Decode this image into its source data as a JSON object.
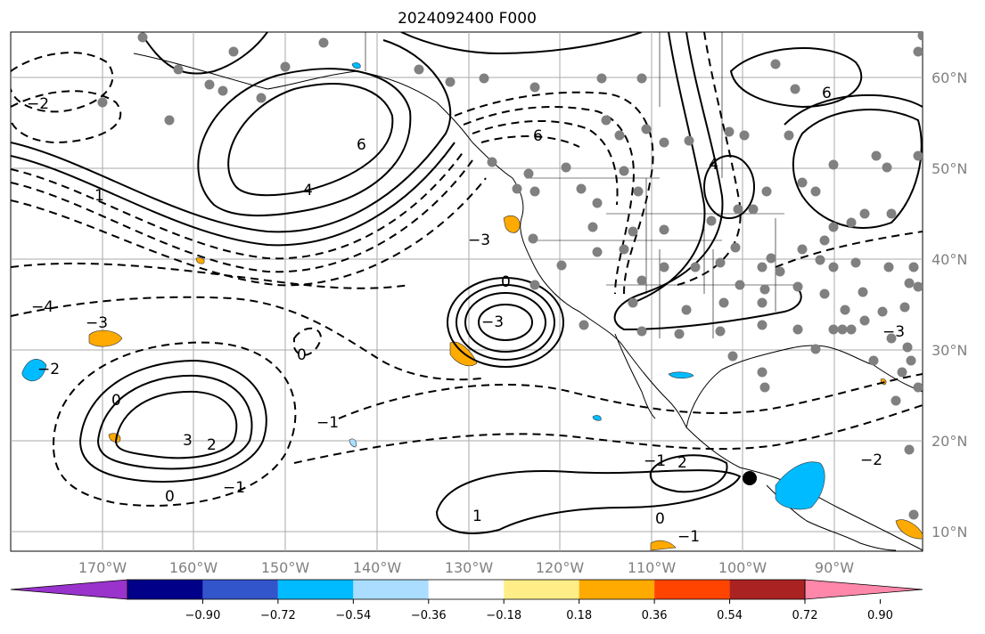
{
  "title": "2024092400 F000",
  "lat_labels": [
    "60°N",
    "50°N",
    "40°N",
    "30°N",
    "20°N",
    "10°N"
  ],
  "lon_labels": [
    "170°W",
    "160°W",
    "150°W",
    "140°W",
    "130°W",
    "120°W",
    "110°W",
    "100°W",
    "90°W"
  ],
  "colorbar": {
    "colors": [
      "#9933cc",
      "#000088",
      "#3355cc",
      "#00bbff",
      "#aaddff",
      "#ffffff",
      "#ffee88",
      "#ffaa00",
      "#ff4400",
      "#aa2222",
      "#ff88aa"
    ],
    "ticks": [
      "−0.90",
      "−0.72",
      "−0.54",
      "−0.36",
      "−0.18",
      "0.18",
      "0.36",
      "0.54",
      "0.72",
      "0.90"
    ]
  },
  "contour_labels": [
    "0",
    "−1",
    "−2",
    "−3",
    "−4",
    "1",
    "2",
    "3",
    "4",
    "6"
  ],
  "marker": "black-dot"
}
